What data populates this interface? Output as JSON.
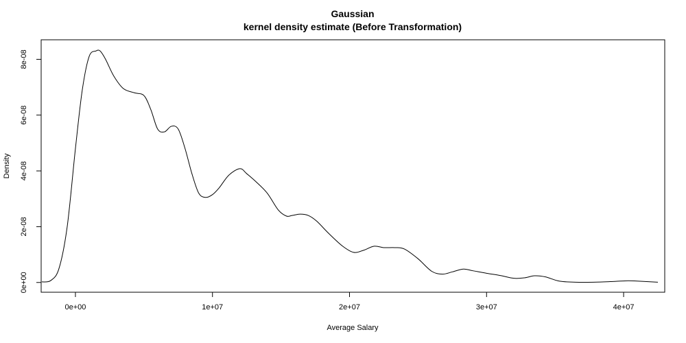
{
  "chart_data": {
    "type": "line",
    "title": "Gaussian",
    "subtitle": "kernel density estimate (Before Transformation)",
    "xlabel": "Average Salary",
    "ylabel": "Density",
    "xlim": [
      -2500000,
      43000000
    ],
    "ylim": [
      -3.5e-09,
      8.7e-08
    ],
    "x_ticks": [
      {
        "value": 0,
        "label": "0e+00"
      },
      {
        "value": 10000000,
        "label": "1e+07"
      },
      {
        "value": 20000000,
        "label": "2e+07"
      },
      {
        "value": 30000000,
        "label": "3e+07"
      },
      {
        "value": 40000000,
        "label": "4e+07"
      }
    ],
    "y_ticks": [
      {
        "value": 0,
        "label": "0e+00"
      },
      {
        "value": 2e-08,
        "label": "2e-08"
      },
      {
        "value": 4e-08,
        "label": "4e-08"
      },
      {
        "value": 6e-08,
        "label": "6e-08"
      },
      {
        "value": 8e-08,
        "label": "8e-08"
      }
    ],
    "grid": false,
    "series": [
      {
        "x": [
          -2450000,
          -1800000,
          -1200000,
          -600000,
          0,
          500000,
          1000000,
          1500000,
          1800000,
          2200000,
          2800000,
          3500000,
          4300000,
          5000000,
          5500000,
          6000000,
          6500000,
          7000000,
          7500000,
          8000000,
          8500000,
          9000000,
          9500000,
          10000000,
          10500000,
          11200000,
          12000000,
          12500000,
          13200000,
          14000000,
          14800000,
          15400000,
          15800000,
          16400000,
          17000000,
          17600000,
          18500000,
          19500000,
          20300000,
          21000000,
          21800000,
          22500000,
          23300000,
          24000000,
          25000000,
          26000000,
          26800000,
          27500000,
          28300000,
          29000000,
          30000000,
          31000000,
          32000000,
          32800000,
          33500000,
          34300000,
          35300000,
          36500000,
          37800000,
          39000000,
          40200000,
          41000000,
          42500000
        ],
        "y": [
          2e-10,
          7e-10,
          5e-09,
          2e-08,
          4.8e-08,
          6.9e-08,
          8.1e-08,
          8.3e-08,
          8.3e-08,
          8e-08,
          7.4e-08,
          6.95e-08,
          6.8e-08,
          6.7e-08,
          6.2e-08,
          5.5e-08,
          5.4e-08,
          5.6e-08,
          5.5e-08,
          4.8e-08,
          3.9e-08,
          3.2e-08,
          3.05e-08,
          3.15e-08,
          3.4e-08,
          3.85e-08,
          4.08e-08,
          3.9e-08,
          3.6e-08,
          3.2e-08,
          2.6e-08,
          2.38e-08,
          2.4e-08,
          2.45e-08,
          2.4e-08,
          2.2e-08,
          1.75e-08,
          1.3e-08,
          1.08e-08,
          1.15e-08,
          1.3e-08,
          1.25e-08,
          1.25e-08,
          1.2e-08,
          8.5e-09,
          4e-09,
          3e-09,
          3.8e-09,
          4.8e-09,
          4.2e-09,
          3.3e-09,
          2.5e-09,
          1.5e-09,
          1.7e-09,
          2.4e-09,
          2e-09,
          5e-10,
          1e-10,
          1e-10,
          3e-10,
          6e-10,
          5e-10,
          1e-10
        ]
      }
    ]
  }
}
